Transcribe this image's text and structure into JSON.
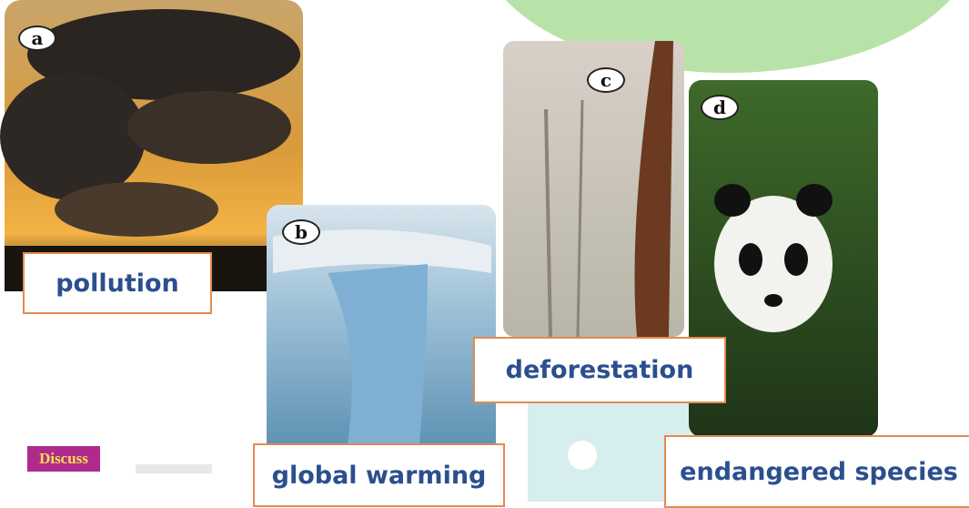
{
  "photos": [
    {
      "letter": "a",
      "caption": "pollution"
    },
    {
      "letter": "b",
      "caption": "global warming"
    },
    {
      "letter": "c",
      "caption": "deforestation"
    },
    {
      "letter": "d",
      "caption": "endangered species"
    }
  ],
  "discuss": "Discuss"
}
